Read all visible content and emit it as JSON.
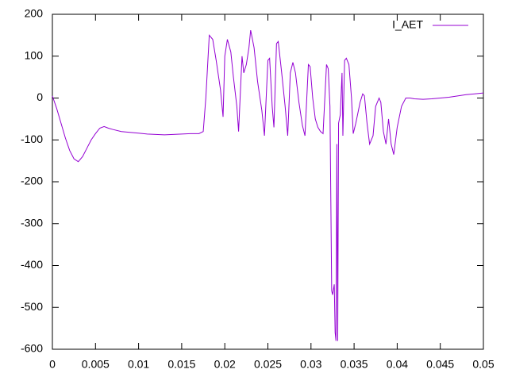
{
  "chart_data": {
    "type": "line",
    "x": [
      0,
      0.0005,
      0.001,
      0.0015,
      0.002,
      0.0025,
      0.003,
      0.0035,
      0.004,
      0.0045,
      0.005,
      0.0055,
      0.006,
      0.0065,
      0.007,
      0.008,
      0.009,
      0.01,
      0.011,
      0.012,
      0.013,
      0.014,
      0.015,
      0.016,
      0.017,
      0.0175,
      0.0178,
      0.0182,
      0.0186,
      0.019,
      0.0195,
      0.0198,
      0.02,
      0.0203,
      0.0207,
      0.021,
      0.0214,
      0.0216,
      0.022,
      0.0222,
      0.0225,
      0.0228,
      0.023,
      0.0234,
      0.0238,
      0.0243,
      0.0246,
      0.025,
      0.0252,
      0.0255,
      0.0257,
      0.026,
      0.0262,
      0.0266,
      0.027,
      0.0273,
      0.0276,
      0.0279,
      0.0282,
      0.0286,
      0.029,
      0.0293,
      0.0297,
      0.0299,
      0.0302,
      0.0305,
      0.0308,
      0.0311,
      0.0314,
      0.0318,
      0.032,
      0.0322,
      0.0324,
      0.0325,
      0.0327,
      0.0328,
      0.0329,
      0.033,
      0.0331,
      0.0332,
      0.0334,
      0.0336,
      0.0337,
      0.0339,
      0.0341,
      0.0344,
      0.0347,
      0.0349,
      0.0352,
      0.0357,
      0.036,
      0.0362,
      0.0365,
      0.0368,
      0.0372,
      0.0375,
      0.0379,
      0.0381,
      0.0384,
      0.0387,
      0.039,
      0.0393,
      0.0396,
      0.04,
      0.0405,
      0.041,
      0.0415,
      0.042,
      0.043,
      0.044,
      0.045,
      0.046,
      0.047,
      0.048,
      0.049,
      0.05
    ],
    "series": [
      {
        "name": "I_AET",
        "color": "#9400d3",
        "values": [
          5,
          -25,
          -60,
          -95,
          -125,
          -145,
          -152,
          -140,
          -120,
          -100,
          -85,
          -72,
          -68,
          -72,
          -75,
          -80,
          -82,
          -84,
          -86,
          -87,
          -88,
          -87,
          -86,
          -85,
          -85,
          -80,
          0,
          150,
          140,
          90,
          20,
          -45,
          100,
          140,
          110,
          50,
          -20,
          -80,
          100,
          60,
          80,
          120,
          162,
          120,
          40,
          -30,
          -90,
          90,
          95,
          -20,
          -70,
          130,
          135,
          60,
          -20,
          -90,
          60,
          85,
          60,
          -10,
          -65,
          -90,
          80,
          75,
          0,
          -50,
          -70,
          -80,
          -85,
          80,
          70,
          -20,
          -460,
          -470,
          -445,
          -560,
          -580,
          -110,
          -580,
          -60,
          -40,
          60,
          -90,
          90,
          95,
          80,
          0,
          -85,
          -60,
          -10,
          10,
          5,
          -60,
          -110,
          -90,
          -20,
          0,
          -10,
          -80,
          -110,
          -50,
          -110,
          -135,
          -70,
          -20,
          0,
          0,
          -2,
          -3,
          -2,
          0,
          2,
          5,
          8,
          10,
          12
        ]
      }
    ],
    "xlim": [
      0,
      0.05
    ],
    "xticks": [
      0,
      0.005,
      0.01,
      0.015,
      0.02,
      0.025,
      0.03,
      0.035,
      0.04,
      0.045,
      0.05
    ],
    "ylim": [
      -600,
      200
    ],
    "yticks": [
      -600,
      -500,
      -400,
      -300,
      -200,
      -100,
      0,
      100,
      200
    ],
    "grid": false,
    "legend": "top-right"
  }
}
